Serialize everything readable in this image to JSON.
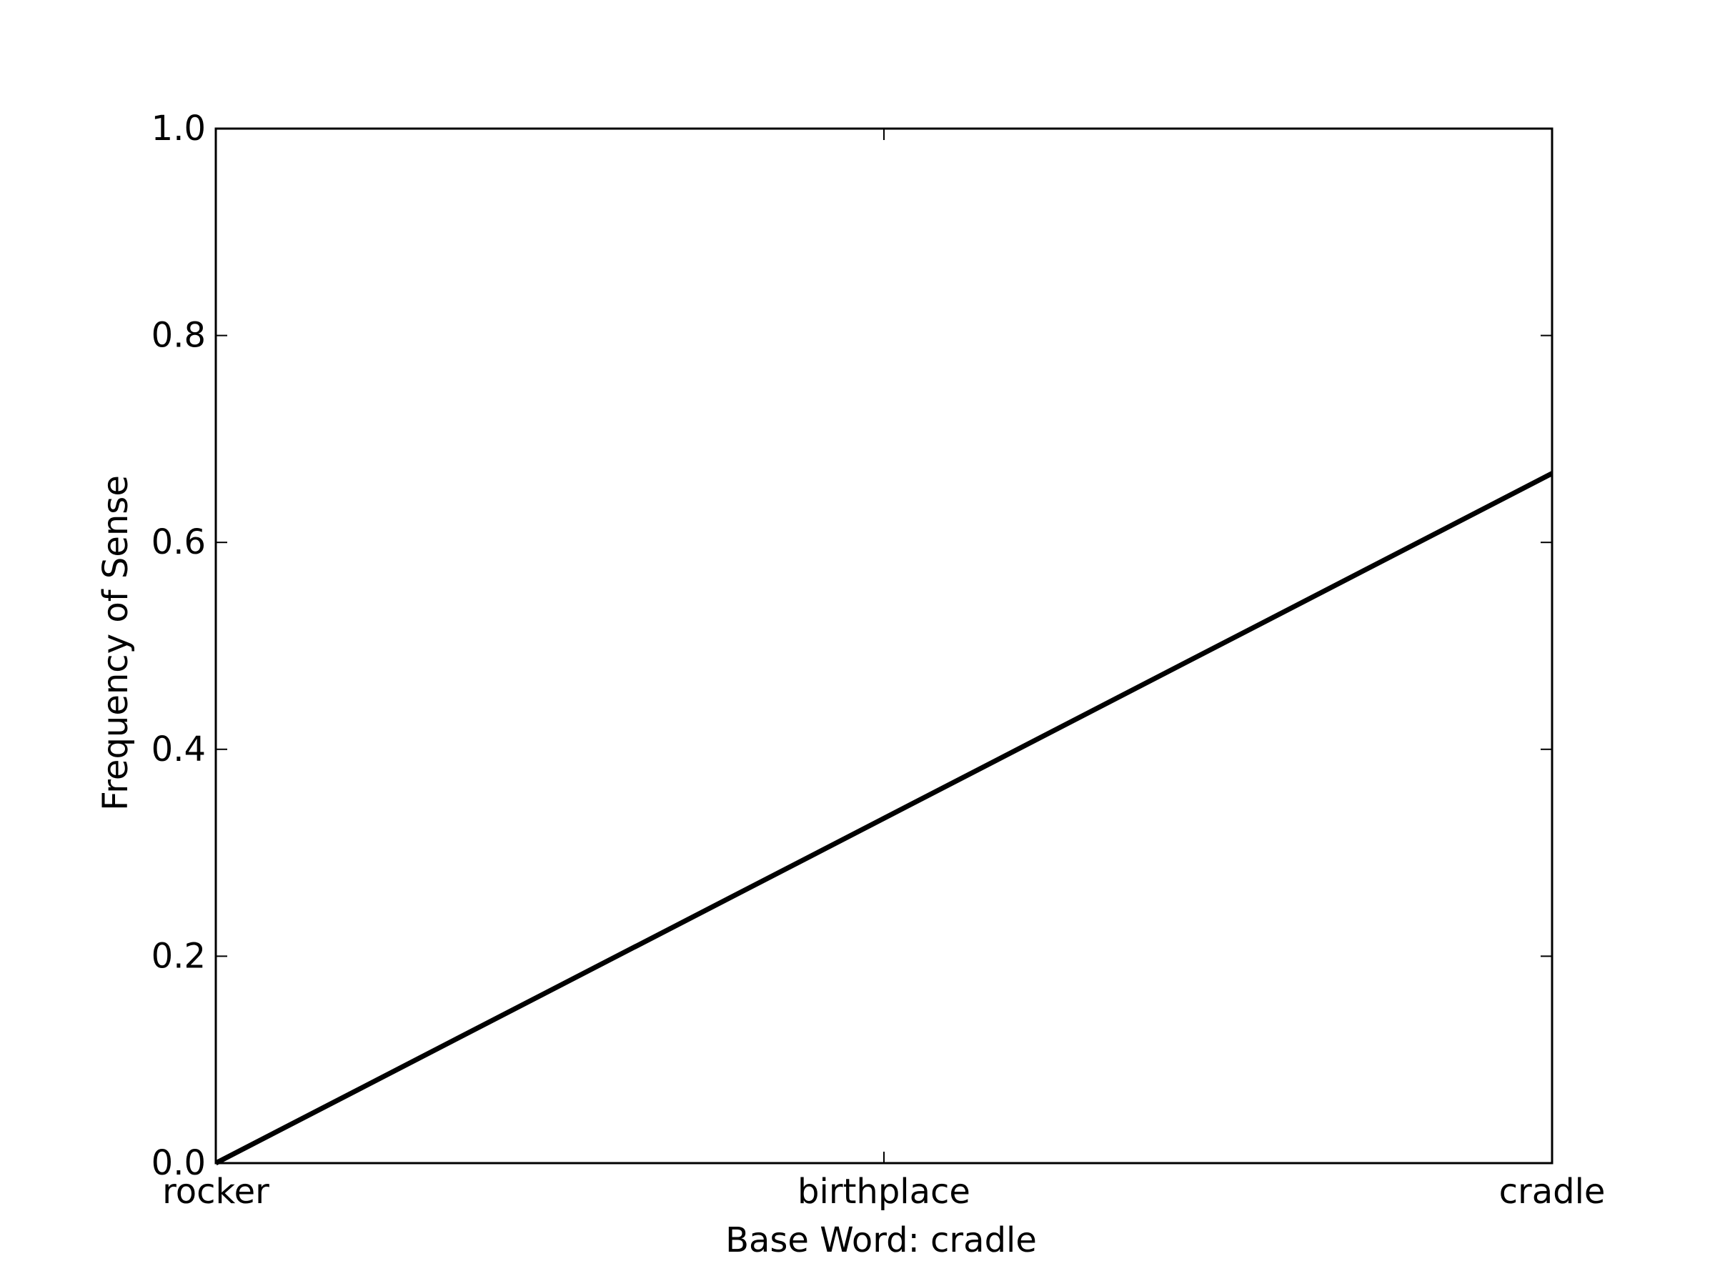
{
  "chart_data": {
    "type": "line",
    "categories": [
      "rocker",
      "birthplace",
      "cradle"
    ],
    "series": [
      {
        "values": [
          0.0,
          0.3333,
          0.6667
        ],
        "color": "#000000"
      }
    ],
    "title": "",
    "xlabel": "Base Word: cradle",
    "ylabel": "Frequency of Sense",
    "ylim": [
      0.0,
      1.0
    ],
    "yticks": [
      "0.0",
      "0.2",
      "0.4",
      "0.6",
      "0.8",
      "1.0"
    ],
    "grid": false,
    "legend": false
  }
}
